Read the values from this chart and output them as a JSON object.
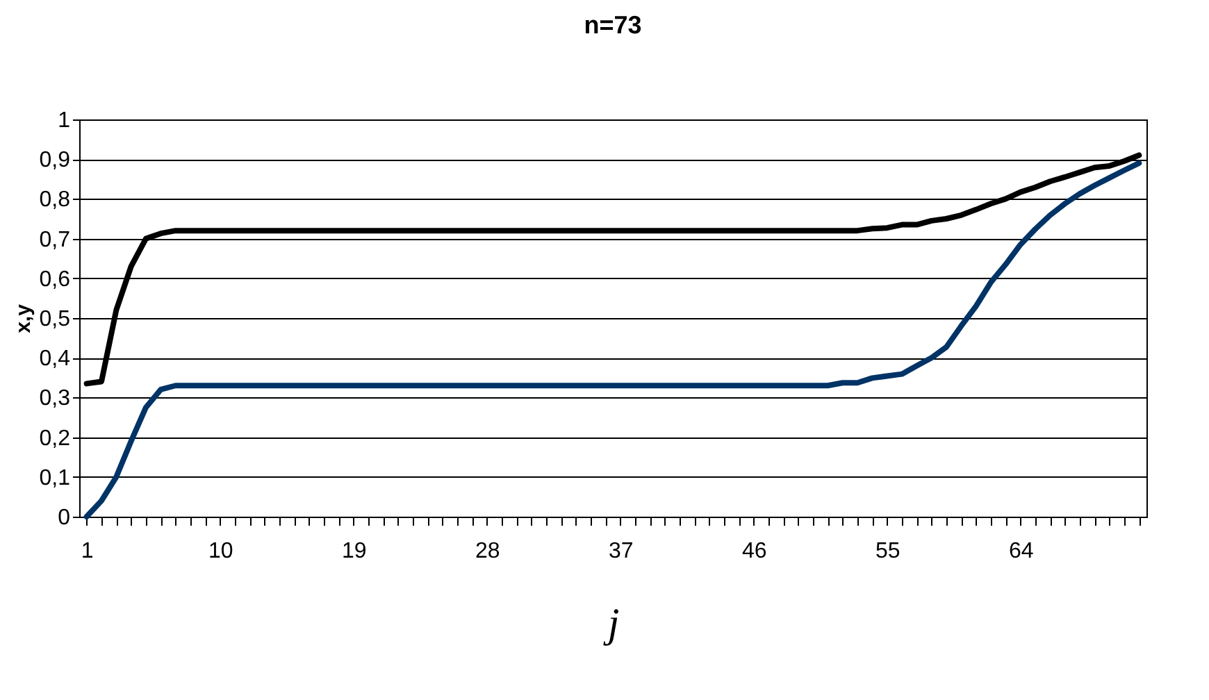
{
  "chart_data": {
    "type": "line",
    "title": "n=73",
    "xlabel": "j",
    "ylabel": "x,y",
    "categories": [
      "1",
      null,
      null,
      null,
      null,
      null,
      null,
      null,
      null,
      "10",
      null,
      null,
      null,
      null,
      null,
      null,
      null,
      null,
      "19",
      null,
      null,
      null,
      null,
      null,
      null,
      null,
      null,
      "28",
      null,
      null,
      null,
      null,
      null,
      null,
      null,
      null,
      "37",
      null,
      null,
      null,
      null,
      null,
      null,
      null,
      null,
      "46",
      null,
      null,
      null,
      null,
      null,
      null,
      null,
      null,
      "55",
      null,
      null,
      null,
      null,
      null,
      null,
      null,
      null,
      "64",
      null,
      null,
      null,
      null,
      null,
      null,
      null,
      null
    ],
    "series": [
      {
        "color": "#000000",
        "values": [
          0.335,
          0.34,
          0.52,
          0.63,
          0.7,
          0.713,
          0.72,
          0.72,
          0.72,
          0.72,
          0.72,
          0.72,
          0.72,
          0.72,
          0.72,
          0.72,
          0.72,
          0.72,
          0.72,
          0.72,
          0.72,
          0.72,
          0.72,
          0.72,
          0.72,
          0.72,
          0.72,
          0.72,
          0.72,
          0.72,
          0.72,
          0.72,
          0.72,
          0.72,
          0.72,
          0.72,
          0.72,
          0.72,
          0.72,
          0.72,
          0.72,
          0.72,
          0.72,
          0.72,
          0.72,
          0.72,
          0.72,
          0.72,
          0.72,
          0.72,
          0.72,
          0.72,
          0.72,
          0.725,
          0.727,
          0.735,
          0.735,
          0.745,
          0.75,
          0.759,
          0.773,
          0.788,
          0.8,
          0.817,
          0.829,
          0.844,
          0.855,
          0.867,
          0.879,
          0.883,
          0.895,
          0.91
        ]
      },
      {
        "color": "#003366",
        "values": [
          0,
          0.04,
          0.1,
          0.19,
          0.275,
          0.32,
          0.33,
          0.33,
          0.33,
          0.33,
          0.33,
          0.33,
          0.33,
          0.33,
          0.33,
          0.33,
          0.33,
          0.33,
          0.33,
          0.33,
          0.33,
          0.33,
          0.33,
          0.33,
          0.33,
          0.33,
          0.33,
          0.33,
          0.33,
          0.33,
          0.33,
          0.33,
          0.33,
          0.33,
          0.33,
          0.33,
          0.33,
          0.33,
          0.33,
          0.33,
          0.33,
          0.33,
          0.33,
          0.33,
          0.33,
          0.33,
          0.33,
          0.33,
          0.33,
          0.33,
          0.33,
          0.337,
          0.337,
          0.349,
          0.354,
          0.359,
          0.38,
          0.4,
          0.427,
          0.48,
          0.53,
          0.59,
          0.635,
          0.685,
          0.724,
          0.759,
          0.788,
          0.813,
          0.834,
          0.853,
          0.872,
          0.89
        ]
      }
    ],
    "ylim": [
      0,
      1
    ],
    "yticks": [
      0,
      {
        "value": 0.1,
        "label": "0,1"
      },
      {
        "value": 0.2,
        "label": "0,2"
      },
      {
        "value": 0.3,
        "label": "0,3"
      },
      {
        "value": 0.4,
        "label": "0,4"
      },
      {
        "value": 0.5,
        "label": "0,5"
      },
      {
        "value": 0.6,
        "label": "0,6"
      },
      {
        "value": 0.7,
        "label": "0,7"
      },
      {
        "value": 0.8,
        "label": "0,8"
      },
      {
        "value": 0.9,
        "label": "0,9"
      },
      1
    ],
    "grid": "y"
  }
}
